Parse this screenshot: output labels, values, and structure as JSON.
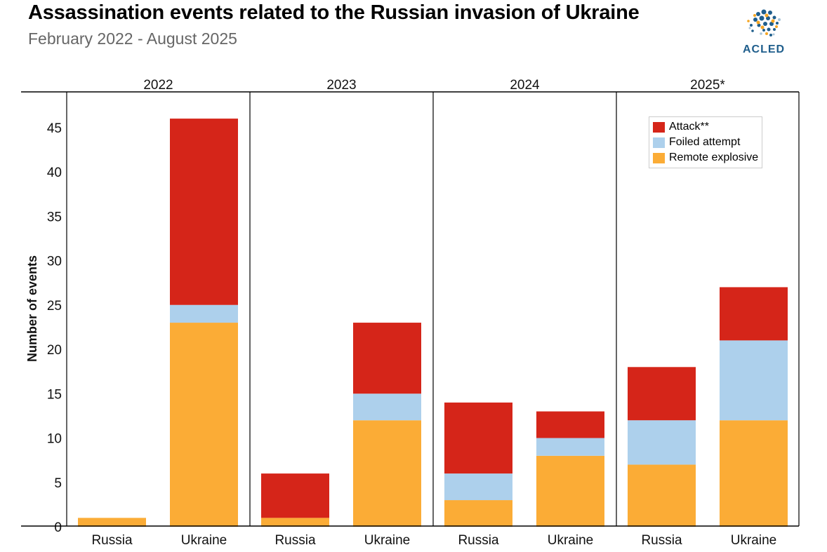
{
  "title": "Assassination events related to the Russian invasion of Ukraine",
  "subtitle": "February 2022 - August 2025",
  "brand": "ACLED",
  "chart_data": {
    "type": "bar",
    "stacked": true,
    "ylabel": "Number of events",
    "ylim": [
      0,
      48
    ],
    "yticks": [
      0,
      5,
      10,
      15,
      20,
      25,
      30,
      35,
      40,
      45
    ],
    "panels": [
      "2022",
      "2023",
      "2024",
      "2025*"
    ],
    "categories": [
      "Russia",
      "Ukraine"
    ],
    "series": [
      {
        "name": "Remote explosive",
        "color": "#FBAC36",
        "values": [
          [
            1,
            23
          ],
          [
            1,
            12
          ],
          [
            3,
            8
          ],
          [
            7,
            12
          ]
        ]
      },
      {
        "name": "Foiled attempt",
        "color": "#ADD0EC",
        "values": [
          [
            0,
            2
          ],
          [
            0,
            3
          ],
          [
            3,
            2
          ],
          [
            5,
            9
          ]
        ]
      },
      {
        "name": "Attack**",
        "color": "#D52519",
        "values": [
          [
            0,
            21
          ],
          [
            5,
            8
          ],
          [
            8,
            3
          ],
          [
            6,
            6
          ]
        ]
      }
    ],
    "legend": {
      "position": "top-right",
      "order": [
        "Attack**",
        "Foiled attempt",
        "Remote explosive"
      ]
    },
    "grid": false
  }
}
